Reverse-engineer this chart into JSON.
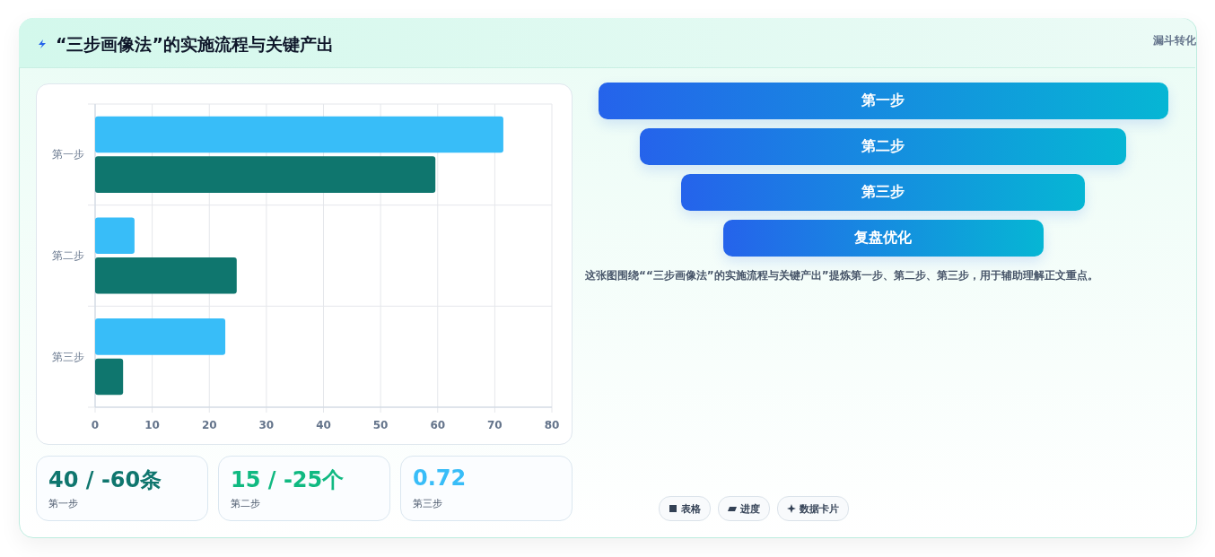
{
  "chart_data": [
    {
      "type": "bar",
      "title": "“三步画像法”的实施流程与关键产出",
      "orientation": "horizontal",
      "categories": [
        "第一步",
        "第二步",
        "第三步"
      ],
      "series": [
        {
          "color": "#38bdf8",
          "values": [
            71.5,
            6.9,
            22.8
          ]
        },
        {
          "color": "#0f766e",
          "values": [
            59.6,
            24.8,
            4.9
          ]
        }
      ],
      "xlim": [
        0,
        80
      ],
      "xticks": [
        0,
        10,
        20,
        30,
        40,
        50,
        60,
        70,
        80
      ],
      "grid": true
    },
    {
      "type": "other",
      "subtitle": "漏斗转化",
      "categories": [
        "第一步",
        "第二步",
        "第三步",
        "复盘优化"
      ],
      "annotations": [
        "这张图围绕““三步画像法”的实施流程与关键产出”提炼第一步、第二步、第三步，用于辅助理解正文重点。",
        "表格",
        "进度",
        "数据卡片"
      ]
    },
    {
      "type": "other",
      "annotations": [
        "40 / -60条",
        "第一步",
        "15 / -25个",
        "第二步",
        "0.72",
        "第三步"
      ],
      "colors": [
        "#0f766e",
        "#10b981",
        "#38bdf8"
      ]
    }
  ]
}
